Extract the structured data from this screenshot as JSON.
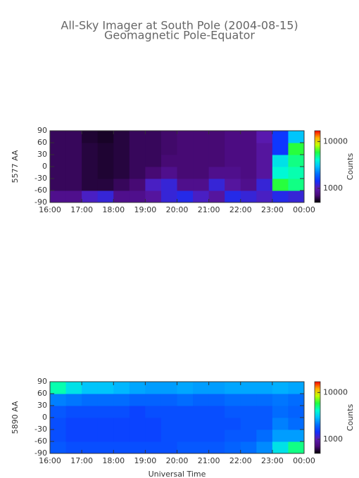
{
  "chart_data": [
    {
      "type": "heatmap",
      "title": "All-Sky Imager at South Pole (2004-08-15)",
      "subtitle": "Geomagnetic Pole-Equator",
      "ylabel": "5577 AA",
      "zlabel": "Counts",
      "xlim": [
        16,
        24
      ],
      "xticks": [
        {
          "value": 16,
          "label": "16:00"
        },
        {
          "value": 17,
          "label": "17:00"
        },
        {
          "value": 18,
          "label": "18:00"
        },
        {
          "value": 19,
          "label": "19:00"
        },
        {
          "value": 20,
          "label": "20:00"
        },
        {
          "value": 21,
          "label": "21:00"
        },
        {
          "value": 22,
          "label": "22:00"
        },
        {
          "value": 23,
          "label": "23:00"
        },
        {
          "value": 24,
          "label": "00:00"
        }
      ],
      "ylim": [
        -90,
        90
      ],
      "yticks": [
        -90,
        -60,
        -30,
        0,
        30,
        60,
        90
      ],
      "zlim": [
        500,
        17000
      ],
      "zticks": [
        1000,
        10000
      ],
      "log_z": true,
      "colormap": [
        "#000000",
        "#4a0a7a",
        "#5a1ab0",
        "#1030ff",
        "#0070ff",
        "#00c0ff",
        "#00ffd0",
        "#20ff40",
        "#c0ff00",
        "#ffb000",
        "#ff0000"
      ],
      "z": [
        [
          800,
          800,
          1100,
          1200,
          800,
          800,
          900,
          1200,
          1300,
          1100,
          900,
          1300,
          1200,
          1100,
          1300,
          1200
        ],
        [
          650,
          650,
          600,
          600,
          650,
          700,
          1100,
          1200,
          800,
          800,
          1200,
          900,
          800,
          1200,
          6000,
          5000
        ],
        [
          650,
          650,
          600,
          580,
          600,
          650,
          700,
          800,
          700,
          700,
          800,
          800,
          750,
          900,
          4000,
          4500
        ],
        [
          650,
          650,
          600,
          580,
          600,
          650,
          650,
          700,
          700,
          700,
          700,
          750,
          750,
          900,
          3500,
          5000
        ],
        [
          650,
          650,
          600,
          580,
          600,
          650,
          650,
          680,
          700,
          700,
          700,
          750,
          750,
          900,
          1500,
          6000
        ],
        [
          650,
          650,
          580,
          560,
          600,
          650,
          650,
          680,
          700,
          700,
          700,
          750,
          750,
          1000,
          1500,
          3000
        ]
      ]
    },
    {
      "type": "heatmap",
      "ylabel": "5890 AA",
      "zlabel": "Counts",
      "xlabel": "Universal Time",
      "xlim": [
        16,
        24
      ],
      "xticks": [
        {
          "value": 16,
          "label": "16:00"
        },
        {
          "value": 17,
          "label": "17:00"
        },
        {
          "value": 18,
          "label": "18:00"
        },
        {
          "value": 19,
          "label": "19:00"
        },
        {
          "value": 20,
          "label": "20:00"
        },
        {
          "value": 21,
          "label": "21:00"
        },
        {
          "value": 22,
          "label": "22:00"
        },
        {
          "value": 23,
          "label": "23:00"
        },
        {
          "value": 24,
          "label": "00:00"
        }
      ],
      "ylim": [
        -90,
        90
      ],
      "yticks": [
        -90,
        -60,
        -30,
        0,
        30,
        60,
        90
      ],
      "zlim": [
        500,
        17000
      ],
      "zticks": [
        1000,
        10000
      ],
      "log_z": true,
      "colormap": [
        "#000000",
        "#4a0a7a",
        "#5a1ab0",
        "#1030ff",
        "#0070ff",
        "#00c0ff",
        "#00ffd0",
        "#20ff40",
        "#c0ff00",
        "#ffb000",
        "#ff0000"
      ],
      "z": [
        [
          1800,
          1700,
          1700,
          1700,
          1700,
          1700,
          1700,
          1700,
          1800,
          1800,
          1800,
          1900,
          2000,
          2300,
          3500,
          5000
        ],
        [
          1700,
          1600,
          1600,
          1600,
          1600,
          1600,
          1600,
          1700,
          1700,
          1700,
          1700,
          1800,
          1800,
          2000,
          2500,
          2500
        ],
        [
          1700,
          1600,
          1600,
          1600,
          1600,
          1600,
          1600,
          1700,
          1700,
          1700,
          1700,
          1700,
          1800,
          1800,
          2200,
          2000
        ],
        [
          1800,
          1700,
          1700,
          1700,
          1700,
          1600,
          1700,
          1700,
          1700,
          1700,
          1700,
          1800,
          1800,
          1800,
          2000,
          1900
        ],
        [
          2200,
          2100,
          2000,
          2000,
          2000,
          1900,
          1900,
          1900,
          2000,
          1900,
          1900,
          2000,
          2000,
          2000,
          2100,
          2000
        ],
        [
          4500,
          3500,
          3000,
          3000,
          2800,
          2600,
          2500,
          2500,
          2600,
          2500,
          2500,
          2600,
          2600,
          2600,
          2700,
          2600
        ]
      ]
    }
  ]
}
